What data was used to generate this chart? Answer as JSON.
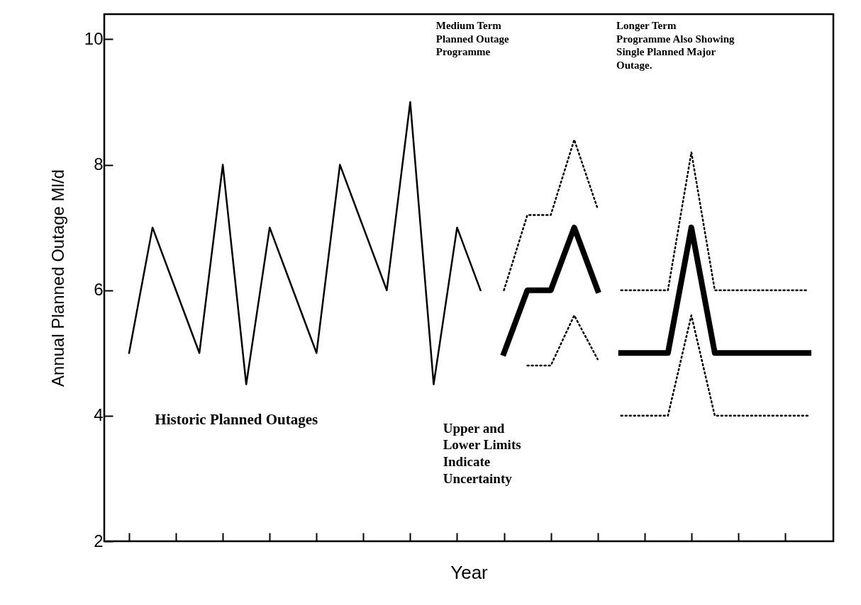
{
  "chart_data": {
    "type": "line",
    "xlabel": "Year",
    "ylabel": "Annual Planned Outage Ml/d",
    "categories": [
      null,
      null,
      null,
      null,
      null,
      null,
      null,
      null,
      null,
      null,
      null,
      null,
      null,
      null,
      null,
      null,
      null,
      null,
      null,
      null,
      null,
      null,
      null,
      null,
      null,
      null,
      null,
      null,
      null,
      null
    ],
    "ylim": [
      2,
      10.4
    ],
    "yticks": [
      2,
      4,
      6,
      8,
      10
    ],
    "series": [
      {
        "color": "#000000",
        "line_style": "solid",
        "values": [
          5,
          7,
          6,
          5,
          8,
          4.5,
          7,
          6,
          5,
          8,
          7,
          6,
          9,
          4.5,
          7,
          6,
          null,
          null,
          null,
          null,
          null,
          null,
          null,
          null,
          null,
          null,
          null,
          null,
          null,
          null
        ]
      },
      {
        "color": "#000000",
        "line_style": "solid",
        "values": [
          null,
          null,
          null,
          null,
          null,
          null,
          null,
          null,
          null,
          null,
          null,
          null,
          null,
          null,
          null,
          null,
          5,
          6,
          6,
          7,
          6,
          null,
          null,
          null,
          null,
          null,
          null,
          null,
          null,
          null
        ]
      },
      {
        "color": "#000000",
        "line_style": "dotted",
        "values": [
          null,
          null,
          null,
          null,
          null,
          null,
          null,
          null,
          null,
          null,
          null,
          null,
          null,
          null,
          null,
          null,
          6,
          7.2,
          7.2,
          8.4,
          7.3,
          null,
          null,
          null,
          null,
          null,
          null,
          null,
          null,
          null
        ]
      },
      {
        "color": "#000000",
        "line_style": "dotted",
        "values": [
          null,
          null,
          null,
          null,
          null,
          null,
          null,
          null,
          null,
          null,
          null,
          null,
          null,
          null,
          null,
          null,
          null,
          4.8,
          4.8,
          5.6,
          4.9,
          null,
          null,
          null,
          null,
          null,
          null,
          null,
          null,
          null
        ]
      },
      {
        "color": "#000000",
        "line_style": "solid",
        "values": [
          null,
          null,
          null,
          null,
          null,
          null,
          null,
          null,
          null,
          null,
          null,
          null,
          null,
          null,
          null,
          null,
          null,
          null,
          null,
          null,
          null,
          5,
          5,
          5,
          7,
          5,
          5,
          5,
          5,
          5
        ]
      },
      {
        "color": "#000000",
        "line_style": "dotted",
        "values": [
          null,
          null,
          null,
          null,
          null,
          null,
          null,
          null,
          null,
          null,
          null,
          null,
          null,
          null,
          null,
          null,
          null,
          null,
          null,
          null,
          null,
          6,
          6,
          6,
          8.2,
          6,
          6,
          6,
          6,
          6
        ]
      },
      {
        "color": "#000000",
        "line_style": "dotted",
        "values": [
          null,
          null,
          null,
          null,
          null,
          null,
          null,
          null,
          null,
          null,
          null,
          null,
          null,
          null,
          null,
          null,
          null,
          null,
          null,
          null,
          null,
          4,
          4,
          4,
          5.6,
          4,
          4,
          4,
          4,
          4
        ]
      }
    ],
    "annotations": [
      "Historic Planned Outages",
      "Medium Term\nPlanned Outage\nProgramme",
      "Longer Term\nProgramme Also Showing\nSingle Planned Major\nOutage.",
      "Upper and\nLower Limits\nIndicate\nUncertainty"
    ]
  }
}
